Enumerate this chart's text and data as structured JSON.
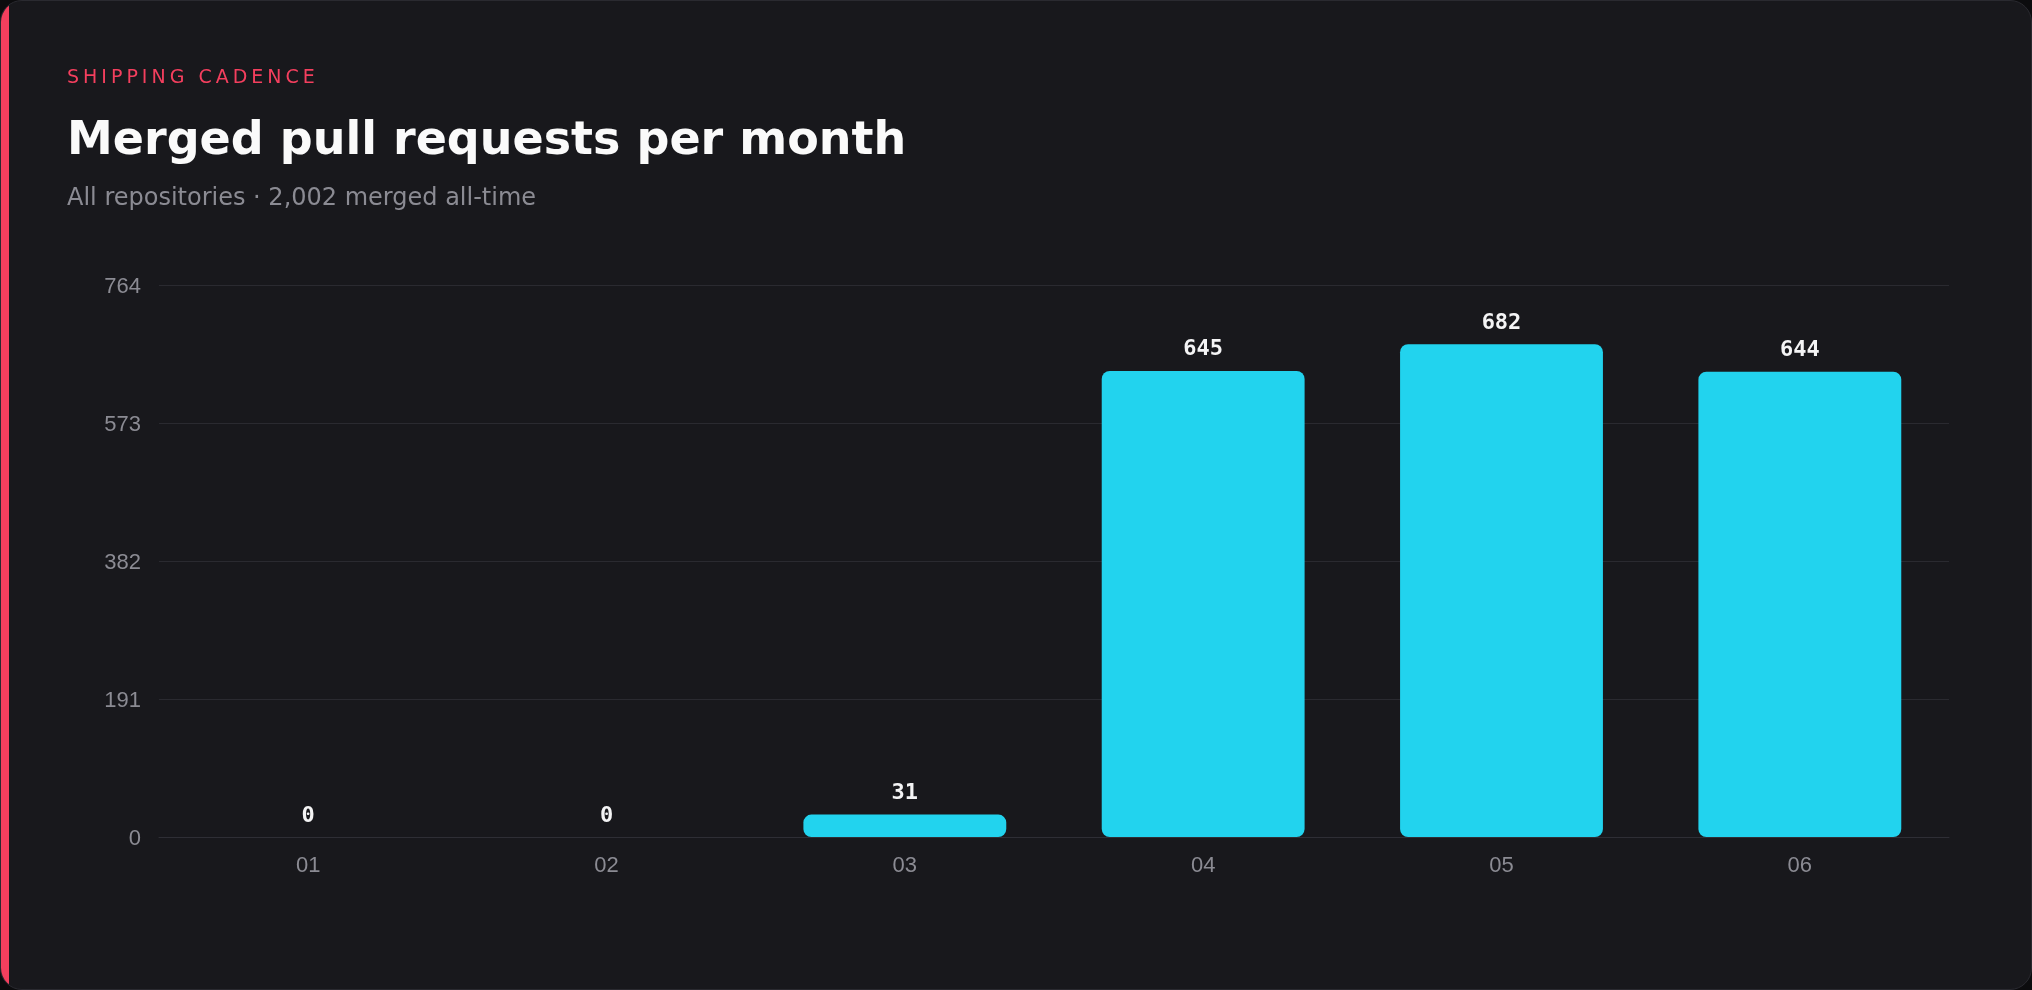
{
  "chart_data": {
    "type": "bar",
    "annotations": [
      "SHIPPING CADENCE"
    ],
    "title": "Merged pull requests per month",
    "subtitle": "All repositories · 2,002 merged all-time",
    "categories": [
      "01",
      "02",
      "03",
      "04",
      "05",
      "06"
    ],
    "values": [
      0,
      0,
      31,
      645,
      682,
      644
    ],
    "color": "#22d3ee",
    "ylim": [
      0,
      764
    ],
    "yticks": [
      0,
      191,
      382,
      573,
      764
    ],
    "grid": "y",
    "data_labels": true
  }
}
